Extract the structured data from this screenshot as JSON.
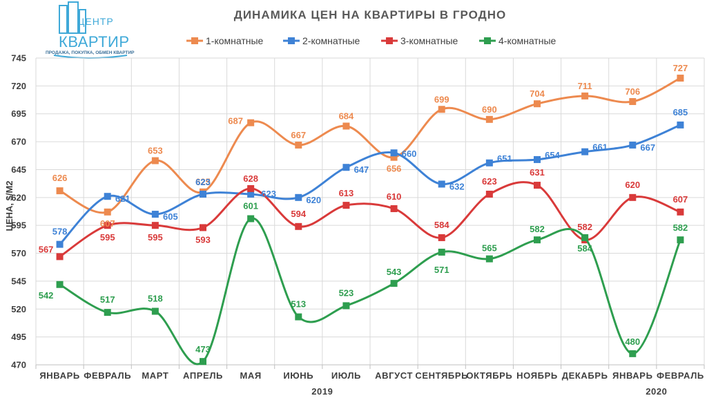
{
  "logo": {
    "line1": "ЦЕНТР",
    "line2": "КВАРТИР",
    "tagline": "ПРОДАЖА, ПОКУПКА, ОБМЕН КВАРТИР"
  },
  "colors": {
    "s1": "#ED8A4F",
    "s2": "#3E82D6",
    "s3": "#D93A3A",
    "s4": "#2E9E4F",
    "grid": "#d9d9d9",
    "axis": "#bfbfbf",
    "logo": "#3fa9d8"
  },
  "chart_data": {
    "type": "line",
    "title": "ДИНАМИКА ЦЕН НА КВАРТИРЫ В ГРОДНО",
    "ylabel": "ЦЕНА, $/М2",
    "xlabel": "",
    "ylim": [
      470,
      745
    ],
    "yticks": [
      470,
      495,
      520,
      545,
      570,
      595,
      620,
      645,
      670,
      695,
      720,
      745
    ],
    "grid": true,
    "smooth": true,
    "legend_position": "top",
    "categories": [
      "ЯНВАРЬ",
      "ФЕВРАЛЬ",
      "МАРТ",
      "АПРЕЛЬ",
      "МАЯ",
      "ИЮНЬ",
      "ИЮЛЬ",
      "АВГУСТ",
      "СЕНТЯБРЬ",
      "ОКТЯБРЬ",
      "НОЯБРЬ",
      "ДЕКАБРЬ",
      "ЯНВАРЬ",
      "ФЕВРАЛЬ"
    ],
    "year_groups": [
      {
        "label": "2019",
        "from": 0,
        "to": 11
      },
      {
        "label": "2020",
        "from": 12,
        "to": 13
      }
    ],
    "series": [
      {
        "name": "1-комнатные",
        "values": [
          626,
          607,
          653,
          625,
          687,
          667,
          684,
          656,
          699,
          690,
          704,
          711,
          706,
          727
        ]
      },
      {
        "name": "2-комнатные",
        "values": [
          578,
          621,
          605,
          623,
          623,
          620,
          647,
          660,
          632,
          651,
          654,
          661,
          667,
          685
        ]
      },
      {
        "name": "3-комнатные",
        "values": [
          567,
          595,
          595,
          593,
          628,
          594,
          613,
          610,
          584,
          623,
          631,
          582,
          620,
          607
        ]
      },
      {
        "name": "4-комнатные",
        "values": [
          542,
          517,
          518,
          473,
          601,
          513,
          523,
          543,
          571,
          565,
          582,
          584,
          480,
          582
        ]
      }
    ]
  }
}
